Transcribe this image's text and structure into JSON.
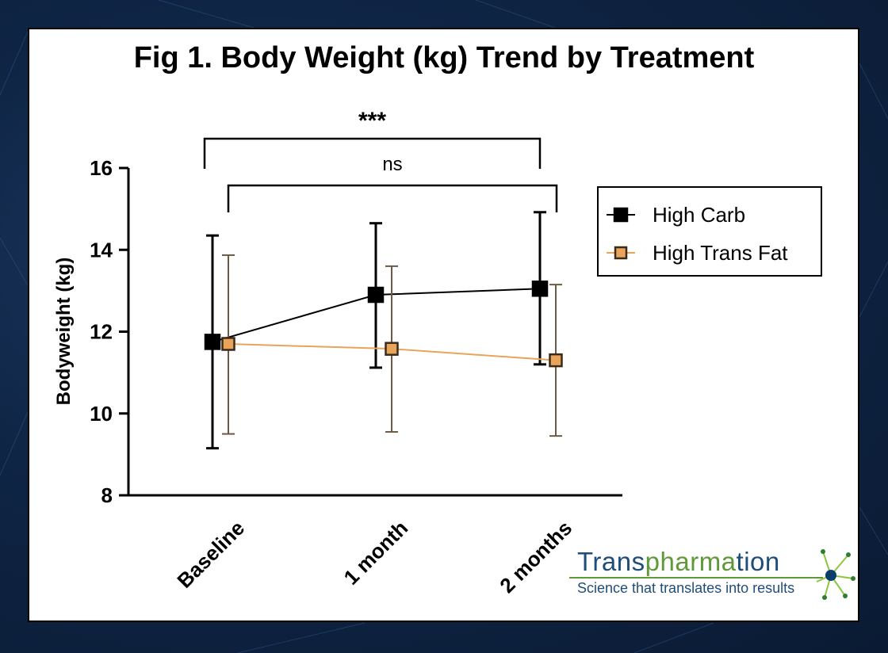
{
  "title": "Fig 1. Body Weight (kg) Trend by Treatment",
  "logo": {
    "name_part1": "Trans",
    "name_part2": "pharma",
    "name_part3": "tion",
    "tagline": "Science that translates into results"
  },
  "colors": {
    "high_carb": "#000000",
    "high_trans_fat": "#e8a45a",
    "trans_fat_errorbar": "#6b5a45"
  },
  "chart_data": {
    "type": "line",
    "title": "Fig 1. Body Weight (kg) Trend by Treatment",
    "xlabel": "",
    "ylabel": "Bodyweight (kg)",
    "categories": [
      "Baseline",
      "1 month",
      "2 months"
    ],
    "ylim": [
      8,
      16
    ],
    "yticks": [
      8,
      10,
      12,
      14,
      16
    ],
    "grid": false,
    "legend": "right",
    "series": [
      {
        "name": "High Carb",
        "values": [
          11.75,
          12.9,
          13.05
        ],
        "error_low": [
          9.15,
          11.12,
          11.2
        ],
        "error_high": [
          14.35,
          14.65,
          14.92
        ]
      },
      {
        "name": "High Trans Fat",
        "values": [
          11.7,
          11.58,
          11.3
        ],
        "error_low": [
          9.5,
          9.55,
          9.45
        ],
        "error_high": [
          13.87,
          13.6,
          13.15
        ]
      }
    ],
    "annotations": [
      {
        "label": "***",
        "from": "Baseline",
        "to": "2 months",
        "series": "High Carb"
      },
      {
        "label": "ns",
        "from": "Baseline",
        "to": "2 months",
        "series": "High Trans Fat"
      }
    ]
  }
}
